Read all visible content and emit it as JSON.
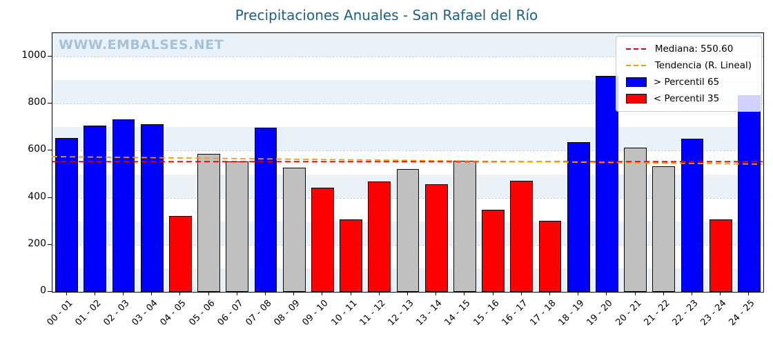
{
  "title": "Precipitaciones Anuales - San Rafael del Río",
  "watermark": "WWW.EMBALSES.NET",
  "legend": {
    "median_label": "Mediana: 550.60",
    "trend_label": "Tendencia (R. Lineal)",
    "p65_label": "> Percentil 65",
    "p35_label": "< Percentil 35"
  },
  "colors": {
    "above_p65": "#0000ff",
    "below_p35": "#ff0000",
    "mid": "#c0c0c0",
    "median_line": "#dd0000",
    "trend_line": "#ff9900",
    "band": "#e9f1f9",
    "title": "#1b6384",
    "watermark": "#a6c2d8"
  },
  "chart_data": {
    "type": "bar",
    "title": "Precipitaciones Anuales - San Rafael del Río",
    "xlabel": "",
    "ylabel": "",
    "categories": [
      "00 - 01",
      "01 - 02",
      "02 - 03",
      "03 - 04",
      "04 - 05",
      "05 - 06",
      "06 - 07",
      "07 - 08",
      "08 - 09",
      "09 - 10",
      "10 - 11",
      "11 - 12",
      "12 - 13",
      "13 - 14",
      "14 - 15",
      "15 - 16",
      "16 - 17",
      "17 - 18",
      "18 - 19",
      "19 - 20",
      "20 - 21",
      "21 - 22",
      "22 - 23",
      "23 - 24",
      "24 - 25"
    ],
    "values": [
      655,
      708,
      733,
      712,
      323,
      588,
      553,
      697,
      527,
      443,
      307,
      470,
      521,
      457,
      558,
      348,
      473,
      303,
      637,
      918,
      612,
      533,
      651,
      307,
      836
    ],
    "classes": [
      "above",
      "above",
      "above",
      "above",
      "below",
      "mid",
      "mid",
      "above",
      "mid",
      "below",
      "below",
      "below",
      "mid",
      "below",
      "mid",
      "below",
      "below",
      "below",
      "above",
      "above",
      "mid",
      "mid",
      "above",
      "below",
      "above"
    ],
    "median": 550.6,
    "trend": {
      "start": 572,
      "end": 540
    },
    "ylim": [
      0,
      1100
    ],
    "yticks": [
      0,
      200,
      400,
      600,
      800,
      1000
    ],
    "grid": true,
    "legend_position": "upper right"
  }
}
